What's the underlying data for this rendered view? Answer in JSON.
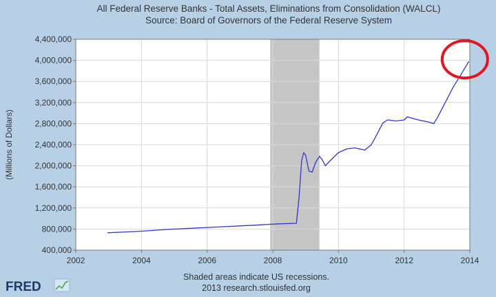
{
  "chart_data": {
    "type": "line",
    "title": "All Federal Reserve Banks - Total Assets, Eliminations from Consolidation (WALCL)",
    "subtitle": "Source: Board of Governors of the Federal Reserve System",
    "ylabel": "(Millions of Dollars)",
    "xlim": [
      2002,
      2014
    ],
    "ylim": [
      400000,
      4400000
    ],
    "x_ticks": [
      2002,
      2004,
      2006,
      2008,
      2010,
      2012,
      2014
    ],
    "y_ticks": [
      400000,
      800000,
      1200000,
      1600000,
      2000000,
      2400000,
      2800000,
      3200000,
      3600000,
      4000000,
      4400000
    ],
    "x_tick_labels": [
      "2002",
      "2004",
      "2006",
      "2008",
      "2010",
      "2012",
      "2014"
    ],
    "y_tick_labels": [
      "400,000",
      "800,000",
      "1,200,000",
      "1,600,000",
      "2,000,000",
      "2,400,000",
      "2,800,000",
      "3,200,000",
      "3,600,000",
      "4,000,000",
      "4,400,000"
    ],
    "grid": true,
    "recessions": [
      [
        2007.92,
        2009.42
      ]
    ],
    "highlight": {
      "x": 2013.85,
      "y": 4020000,
      "shape": "circle",
      "color": "#e8141d"
    },
    "series": [
      {
        "color": "#2e33d8",
        "x": [
          2002.97,
          2003.5,
          2004.0,
          2004.5,
          2005.0,
          2005.5,
          2006.0,
          2006.5,
          2007.0,
          2007.5,
          2007.9,
          2008.2,
          2008.5,
          2008.72,
          2008.8,
          2008.88,
          2008.94,
          2009.0,
          2009.1,
          2009.2,
          2009.3,
          2009.42,
          2009.5,
          2009.6,
          2009.75,
          2010.0,
          2010.25,
          2010.5,
          2010.8,
          2011.0,
          2011.2,
          2011.35,
          2011.5,
          2011.75,
          2012.0,
          2012.1,
          2012.25,
          2012.5,
          2012.75,
          2012.9,
          2013.0,
          2013.25,
          2013.5,
          2013.75,
          2013.97
        ],
        "y": [
          730000,
          745000,
          760000,
          780000,
          800000,
          815000,
          830000,
          845000,
          860000,
          875000,
          890000,
          900000,
          905000,
          910000,
          1400000,
          2100000,
          2250000,
          2200000,
          1900000,
          1880000,
          2060000,
          2180000,
          2120000,
          2000000,
          2100000,
          2250000,
          2320000,
          2340000,
          2300000,
          2400000,
          2630000,
          2810000,
          2870000,
          2850000,
          2870000,
          2930000,
          2900000,
          2860000,
          2830000,
          2800000,
          2900000,
          3200000,
          3500000,
          3750000,
          3980000
        ]
      }
    ],
    "notes": [
      "Shaded areas indicate US recessions.",
      "2013 research.stlouisfed.org"
    ]
  },
  "logo": {
    "text": "FRED"
  }
}
